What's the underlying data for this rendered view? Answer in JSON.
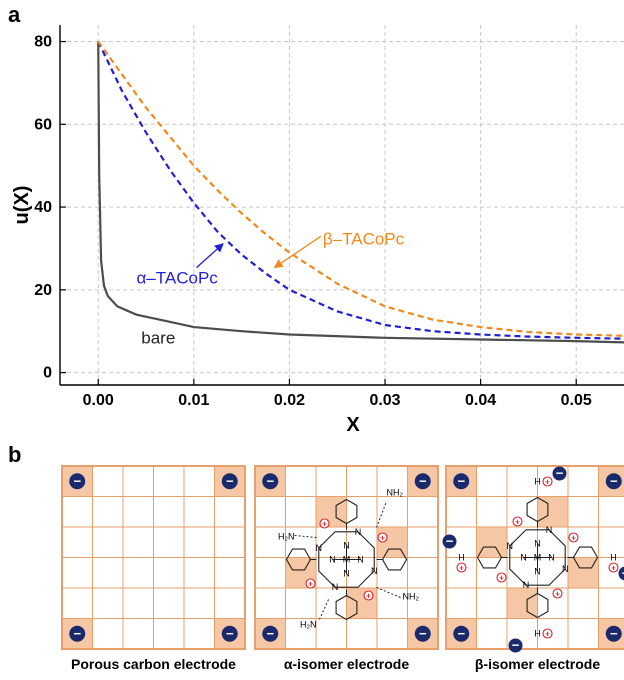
{
  "panel_a_label": "a",
  "panel_b_label": "b",
  "chart_data": {
    "type": "line",
    "title": "",
    "xlabel": "X",
    "ylabel": "u(X)",
    "xlim": [
      -0.004,
      0.055
    ],
    "ylim": [
      -3,
      84
    ],
    "x_ticks": [
      0.0,
      0.01,
      0.02,
      0.03,
      0.04,
      0.05
    ],
    "x_tick_labels": [
      "0.00",
      "0.01",
      "0.02",
      "0.03",
      "0.04",
      "0.05"
    ],
    "y_ticks": [
      0,
      20,
      40,
      60,
      80
    ],
    "y_tick_labels": [
      "0",
      "20",
      "40",
      "60",
      "80"
    ],
    "grid": true,
    "series": [
      {
        "name": "bare",
        "color": "#4d4d4d",
        "style": "solid",
        "x": [
          0.0,
          0.0001,
          0.0003,
          0.0006,
          0.001,
          0.002,
          0.004,
          0.007,
          0.01,
          0.015,
          0.02,
          0.03,
          0.04,
          0.05,
          0.055
        ],
        "y": [
          80,
          48,
          27,
          21,
          18.5,
          16,
          14,
          12.5,
          11,
          10,
          9.2,
          8.4,
          8,
          7.6,
          7.3
        ]
      },
      {
        "name": "α–TACoPc",
        "color": "#1f1fd6",
        "style": "dashed",
        "x": [
          0.0,
          0.0025,
          0.005,
          0.0075,
          0.01,
          0.0125,
          0.015,
          0.0175,
          0.02,
          0.025,
          0.03,
          0.035,
          0.04,
          0.045,
          0.05,
          0.055
        ],
        "y": [
          80,
          68,
          58,
          49,
          41,
          34,
          28.5,
          24,
          20,
          14.8,
          11.5,
          10,
          9.2,
          8.7,
          8.4,
          8.2
        ]
      },
      {
        "name": "β–TACoPc",
        "color": "#f08a1c",
        "style": "dashed",
        "x": [
          0.0,
          0.0025,
          0.005,
          0.0075,
          0.01,
          0.0125,
          0.015,
          0.0175,
          0.02,
          0.025,
          0.03,
          0.035,
          0.04,
          0.045,
          0.05,
          0.055
        ],
        "y": [
          80,
          72,
          64,
          57,
          50,
          44,
          38.5,
          33.5,
          29,
          21.5,
          16,
          12.8,
          11,
          9.8,
          9.2,
          8.9
        ]
      }
    ],
    "annotations": [
      {
        "text": "bare",
        "x": 0.0045,
        "y": 7
      },
      {
        "text": "α–TACoPc",
        "x": 0.004,
        "y": 21.5,
        "arrow_to": [
          0.013,
          31
        ]
      },
      {
        "text": "β–TACoPc",
        "x": 0.0235,
        "y": 31,
        "arrow_to": [
          0.0185,
          25.5
        ]
      }
    ]
  },
  "schematic": {
    "captions": [
      "Porous carbon electrode",
      "α-isomer electrode",
      "β-isomer electrode"
    ],
    "colors": {
      "grid_line": "#e7a06b",
      "corner_fill": "#f6c7a4",
      "ion": "#1a2a6c",
      "cation": "#d7262e"
    },
    "minus_symbol": "−",
    "plus_symbol": "+",
    "metal_label": "M",
    "nitrogen_label": "N",
    "hydrogen_label": "H",
    "amine_label": "H₂N",
    "amine_label_right": "NH₂"
  }
}
